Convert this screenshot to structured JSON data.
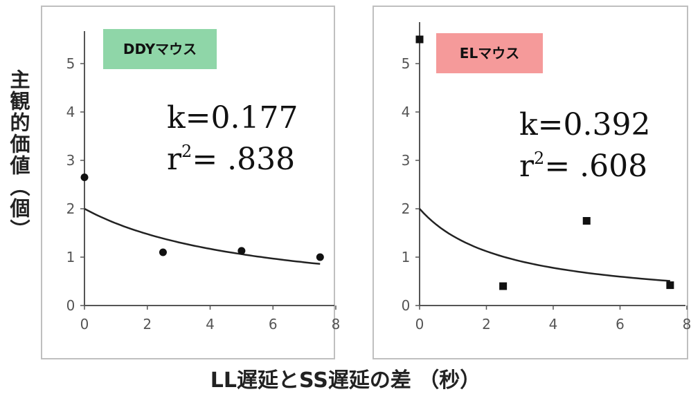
{
  "ylabel": "主観的価値（個）",
  "xlabel": "LL遅延とSS遅延の差 （秒）",
  "chart_data": [
    {
      "type": "scatter",
      "title": "DDYマウス",
      "title_bg": "#8fd6a8",
      "k_text": "k=0.177",
      "r2_prefix": "r",
      "r2_sup": "2",
      "r2_value": "= .838",
      "marker": "circle",
      "xlim": [
        0,
        8
      ],
      "ylim": [
        0,
        5.5
      ],
      "xticks": [
        "0",
        "2",
        "4",
        "6",
        "8"
      ],
      "yticks": [
        "0",
        "1",
        "2",
        "3",
        "4",
        "5"
      ],
      "points": [
        {
          "x": 0,
          "y": 2.65
        },
        {
          "x": 2.5,
          "y": 1.1
        },
        {
          "x": 5,
          "y": 1.13
        },
        {
          "x": 7.5,
          "y": 1.0
        }
      ],
      "fit": {
        "A": 2,
        "k": 0.177,
        "x_range": [
          0,
          7.5
        ]
      }
    },
    {
      "type": "scatter",
      "title": "ELマウス",
      "title_bg": "#f59a9a",
      "k_text": "k=0.392",
      "r2_prefix": "r",
      "r2_sup": "2",
      "r2_value": "= .608",
      "marker": "square",
      "xlim": [
        0,
        8
      ],
      "ylim": [
        0,
        5.5
      ],
      "xticks": [
        "0",
        "2",
        "4",
        "6",
        "8"
      ],
      "yticks": [
        "0",
        "1",
        "2",
        "3",
        "4",
        "5"
      ],
      "points": [
        {
          "x": 0,
          "y": 5.5
        },
        {
          "x": 2.5,
          "y": 0.4
        },
        {
          "x": 5,
          "y": 1.75
        },
        {
          "x": 7.5,
          "y": 0.42
        }
      ],
      "fit": {
        "A": 2,
        "k": 0.392,
        "x_range": [
          0,
          7.5
        ]
      }
    }
  ]
}
